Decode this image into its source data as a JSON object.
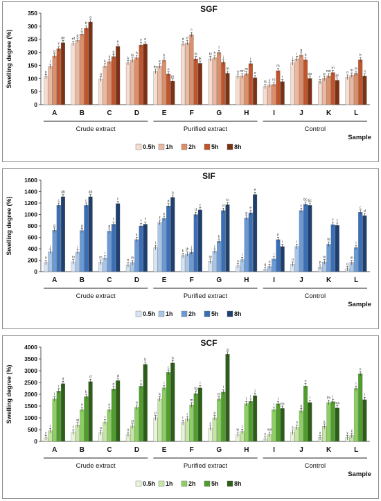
{
  "palettes": {
    "SGF": [
      "#f6ddd0",
      "#eab9a0",
      "#dd8f6c",
      "#c0552c",
      "#7d3114"
    ],
    "SIF": [
      "#d6e4f3",
      "#a9c6e8",
      "#6b9bd6",
      "#3a6fb8",
      "#1f3f6e"
    ],
    "SCF": [
      "#e8f4d9",
      "#c6e6a6",
      "#8ccf63",
      "#4f9d2a",
      "#2c5e17"
    ]
  },
  "chart_data": [
    {
      "type": "bar",
      "title": "SGF",
      "xlabel": "Sample",
      "ylabel": "Swelling degree (%)",
      "ylim": [
        0,
        350
      ],
      "yticks": [
        "0",
        "50",
        "100",
        "150",
        "200",
        "250",
        "300",
        "350"
      ],
      "grid": false,
      "legend_position": "bottom",
      "categories": [
        "A",
        "B",
        "C",
        "D",
        "E",
        "F",
        "G",
        "H",
        "I",
        "J",
        "K",
        "L"
      ],
      "groups": [
        "Crude extract",
        "Purified extract",
        "Control"
      ],
      "series": [
        {
          "name": "0.5h",
          "values": [
            107,
            234,
            98,
            160,
            127,
            233,
            175,
            108,
            70,
            160,
            88,
            105
          ],
          "letters": [
            "p",
            "ef",
            "q",
            "k",
            "lm",
            "d",
            "hi",
            "n",
            "rs",
            "j",
            "r",
            "o"
          ]
        },
        {
          "name": "1h",
          "values": [
            147,
            246,
            148,
            170,
            148,
            236,
            180,
            110,
            75,
            175,
            100,
            113
          ],
          "letters": [
            "l",
            "d",
            "k",
            "hi",
            "k",
            "d",
            "h",
            "mn",
            "s",
            "i",
            "p",
            "m"
          ]
        },
        {
          "name": "2h",
          "values": [
            186,
            270,
            165,
            180,
            170,
            268,
            200,
            118,
            78,
            190,
            110,
            120
          ],
          "letters": [
            "g",
            "c",
            "ij",
            "h",
            "h",
            "c",
            "f",
            "m",
            "rs",
            "g",
            "mn",
            "m"
          ]
        },
        {
          "name": "5h",
          "values": [
            214,
            293,
            184,
            228,
            117,
            175,
            162,
            157,
            130,
            172,
            123,
            172
          ],
          "letters": [
            "f",
            "b",
            "g",
            "e",
            "n",
            "hi",
            "j",
            "j",
            "m",
            "h",
            "m",
            "h"
          ]
        },
        {
          "name": "8h",
          "values": [
            237,
            316,
            223,
            232,
            90,
            158,
            120,
            103,
            88,
            100,
            93,
            109
          ],
          "letters": [
            "de",
            "a",
            "e",
            "e",
            "pr",
            "jk",
            "m",
            "o",
            "r",
            "op",
            "pr",
            "n"
          ]
        }
      ]
    },
    {
      "type": "bar",
      "title": "SIF",
      "xlabel": "Sample",
      "ylabel": "Swelling degree (%)",
      "ylim": [
        0,
        1600
      ],
      "yticks": [
        "0",
        "200",
        "400",
        "600",
        "800",
        "1000",
        "1200",
        "1400",
        "1600"
      ],
      "grid": false,
      "legend_position": "bottom",
      "categories": [
        "A",
        "B",
        "C",
        "D",
        "E",
        "F",
        "G",
        "H",
        "I",
        "J",
        "K",
        "L"
      ],
      "groups": [
        "Crude extract",
        "Purified extract",
        "Control"
      ],
      "series": [
        {
          "name": "0.5h",
          "values": [
            160,
            170,
            165,
            120,
            420,
            280,
            180,
            100,
            40,
            130,
            80,
            50
          ],
          "letters": [
            "n",
            "m",
            "m",
            "n",
            "i",
            "k",
            "m",
            "n",
            "q",
            "n",
            "p",
            "q"
          ]
        },
        {
          "name": "1h",
          "values": [
            350,
            340,
            240,
            160,
            860,
            310,
            360,
            210,
            90,
            440,
            170,
            160
          ],
          "letters": [
            "j",
            "j",
            "l",
            "m",
            "f",
            "jk",
            "j",
            "l",
            "o",
            "i",
            "m",
            "m"
          ]
        },
        {
          "name": "2h",
          "values": [
            725,
            720,
            710,
            560,
            930,
            340,
            530,
            940,
            220,
            1070,
            480,
            420
          ],
          "letters": [
            "g",
            "g",
            "g",
            "k",
            "e",
            "j",
            "h",
            "g",
            "i",
            "c",
            "hi",
            "i"
          ]
        },
        {
          "name": "5h",
          "values": [
            1160,
            1160,
            830,
            800,
            1150,
            1000,
            1070,
            1030,
            560,
            1180,
            820,
            1040
          ],
          "letters": [
            "c",
            "c",
            "f",
            "f",
            "d",
            "d",
            "d",
            "e",
            "h",
            "bc",
            "f",
            "c"
          ]
        },
        {
          "name": "8h",
          "values": [
            1310,
            1310,
            1190,
            830,
            1300,
            1080,
            1170,
            1350,
            440,
            1160,
            810,
            980
          ],
          "letters": [
            "ab",
            "ab",
            "c",
            "f",
            "a",
            "c",
            "b",
            "e",
            "l",
            "bc",
            "f",
            "d"
          ]
        }
      ]
    },
    {
      "type": "bar",
      "title": "SCF",
      "xlabel": "Sample",
      "ylabel": "Swelling degree (%)",
      "ylim": [
        0,
        4000
      ],
      "yticks": [
        "0",
        "500",
        "1000",
        "1500",
        "2000",
        "2500",
        "3000",
        "3500",
        "4000"
      ],
      "grid": false,
      "legend_position": "bottom",
      "categories": [
        "A",
        "B",
        "C",
        "D",
        "E",
        "F",
        "G",
        "H",
        "I",
        "J",
        "K",
        "L"
      ],
      "groups": [
        "Crude extract",
        "Purified extract",
        "Control"
      ],
      "series": [
        {
          "name": "0.5h",
          "values": [
            150,
            400,
            370,
            300,
            1000,
            800,
            560,
            290,
            100,
            380,
            160,
            160
          ],
          "letters": [
            "y",
            "t",
            "u",
            "u",
            "p",
            "r",
            "s",
            "w",
            "y",
            "s",
            "x",
            "y"
          ]
        },
        {
          "name": "1h",
          "values": [
            450,
            700,
            820,
            650,
            1800,
            950,
            1000,
            420,
            300,
            600,
            640,
            250
          ],
          "letters": [
            "t",
            "st",
            "r",
            "st",
            "k",
            "r",
            "p",
            "t",
            "wx",
            "s",
            "s",
            "z"
          ]
        },
        {
          "name": "2h",
          "values": [
            1800,
            1350,
            1350,
            1450,
            2270,
            1550,
            1800,
            1600,
            1350,
            1300,
            1650,
            2250
          ],
          "letters": [
            "l",
            "o",
            "o",
            "o",
            "i",
            "m",
            "m",
            "l",
            "l",
            "q",
            "lm",
            "i"
          ]
        },
        {
          "name": "5h",
          "values": [
            2140,
            1900,
            2230,
            2340,
            2930,
            2030,
            2100,
            1700,
            1600,
            2350,
            1690,
            2870
          ],
          "letters": [
            "i",
            "k",
            "d",
            "f",
            "c",
            "fg",
            "i",
            "l",
            "i",
            "e",
            "l",
            "c"
          ]
        },
        {
          "name": "8h",
          "values": [
            2450,
            2540,
            2580,
            3270,
            3330,
            2270,
            3700,
            1940,
            1400,
            1650,
            1420,
            1770
          ],
          "letters": [
            "d",
            "d",
            "d",
            "b",
            "b",
            "i",
            "a",
            "j",
            "no",
            "l",
            "mn",
            "l"
          ]
        }
      ]
    }
  ]
}
